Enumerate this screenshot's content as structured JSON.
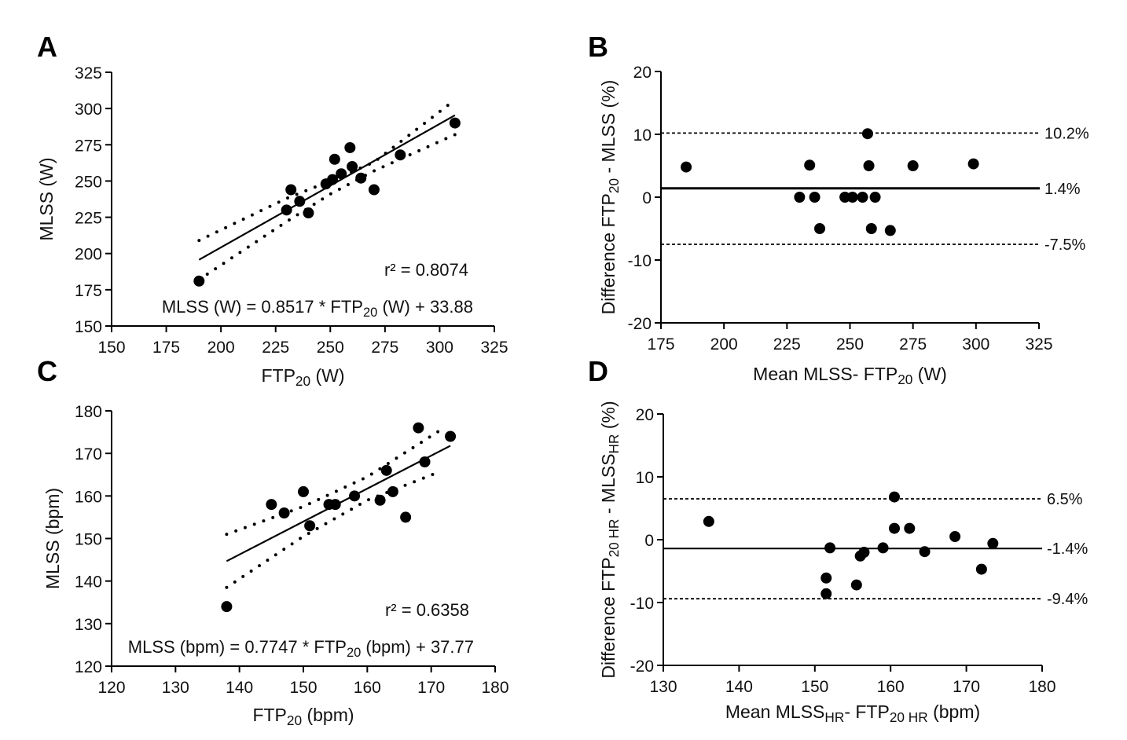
{
  "chart_data": [
    {
      "panel": "A",
      "type": "scatter",
      "xlabel": "FTP",
      "xlabel_sub": "20",
      "xlabel_unit": " (W)",
      "ylabel": "MLSS (W)",
      "xlim": [
        150,
        325
      ],
      "ylim": [
        150,
        325
      ],
      "xticks": [
        150,
        175,
        200,
        225,
        250,
        275,
        300,
        325
      ],
      "yticks": [
        150,
        175,
        200,
        225,
        250,
        275,
        300,
        325
      ],
      "points": [
        [
          190,
          181
        ],
        [
          230,
          230
        ],
        [
          232,
          244
        ],
        [
          236,
          236
        ],
        [
          240,
          228
        ],
        [
          248,
          248
        ],
        [
          251,
          251
        ],
        [
          252,
          265
        ],
        [
          255,
          255
        ],
        [
          259,
          273
        ],
        [
          260,
          260
        ],
        [
          264,
          252
        ],
        [
          270,
          244
        ],
        [
          282,
          268
        ],
        [
          307,
          290
        ]
      ],
      "regression": {
        "slope": 0.8517,
        "intercept": 33.88,
        "x_range": [
          190,
          307
        ]
      },
      "ci_upper": [
        [
          190,
          209
        ],
        [
          230,
          238
        ],
        [
          250,
          250
        ],
        [
          270,
          263
        ],
        [
          307,
          306
        ]
      ],
      "ci_lower": [
        [
          190,
          182
        ],
        [
          230,
          222
        ],
        [
          250,
          241
        ],
        [
          270,
          257
        ],
        [
          307,
          282
        ]
      ],
      "r2_text": "r² = 0.8074",
      "equation": {
        "pre": "MLSS (W) = 0.8517 * FTP",
        "sub": "20",
        "post": " (W) + 33.88"
      }
    },
    {
      "panel": "B",
      "type": "scatter",
      "xlabel": "Mean  MLSS- FTP",
      "xlabel_sub": "20",
      "xlabel_unit": " (W)",
      "ylabel_pre": "Difference FTP",
      "ylabel_sub": "20",
      "ylabel_post": " - MLSS (%)",
      "xlim": [
        175,
        325
      ],
      "ylim": [
        -20,
        20
      ],
      "xticks": [
        175,
        200,
        225,
        250,
        275,
        300,
        325
      ],
      "yticks": [
        -20,
        -10,
        0,
        10,
        20
      ],
      "points": [
        [
          185,
          4.8
        ],
        [
          230,
          0
        ],
        [
          234,
          5.1
        ],
        [
          236,
          0
        ],
        [
          238,
          -5
        ],
        [
          248,
          0
        ],
        [
          251,
          0
        ],
        [
          255,
          0
        ],
        [
          257,
          10.1
        ],
        [
          257.5,
          5
        ],
        [
          258.5,
          -5
        ],
        [
          260,
          0
        ],
        [
          266,
          -5.3
        ],
        [
          275,
          5
        ],
        [
          299,
          5.3
        ]
      ],
      "bias": {
        "value": 1.4,
        "label": "1.4%"
      },
      "upper_loa": {
        "value": 10.2,
        "label": "10.2%"
      },
      "lower_loa": {
        "value": -7.5,
        "label": "-7.5%"
      }
    },
    {
      "panel": "C",
      "type": "scatter",
      "xlabel": "FTP",
      "xlabel_sub": "20",
      "xlabel_unit": " (bpm)",
      "ylabel": "MLSS (bpm)",
      "xlim": [
        120,
        180
      ],
      "ylim": [
        120,
        180
      ],
      "xticks": [
        120,
        130,
        140,
        150,
        160,
        170,
        180
      ],
      "yticks": [
        120,
        130,
        140,
        150,
        160,
        170,
        180
      ],
      "points": [
        [
          138,
          134
        ],
        [
          145,
          158
        ],
        [
          147,
          156
        ],
        [
          150,
          161
        ],
        [
          151,
          153
        ],
        [
          154,
          158
        ],
        [
          155,
          158
        ],
        [
          158,
          160
        ],
        [
          162,
          159
        ],
        [
          163,
          166
        ],
        [
          164,
          161
        ],
        [
          166,
          155
        ],
        [
          168,
          176
        ],
        [
          169,
          168
        ],
        [
          173,
          174
        ]
      ],
      "regression": {
        "slope": 0.7747,
        "intercept": 37.77,
        "x_range": [
          138,
          173
        ]
      },
      "ci_upper": [
        [
          138,
          151
        ],
        [
          150,
          157.5
        ],
        [
          160,
          164.5
        ],
        [
          172,
          176
        ]
      ],
      "ci_lower": [
        [
          138,
          138.5
        ],
        [
          150,
          150.5
        ],
        [
          160,
          159
        ],
        [
          171,
          165.5
        ]
      ],
      "r2_text": "r² = 0.6358",
      "equation": {
        "pre": "MLSS (bpm) = 0.7747 * FTP",
        "sub": "20",
        "post": " (bpm) + 37.77"
      }
    },
    {
      "panel": "D",
      "type": "scatter",
      "xlabel_parts": [
        "Mean  MLSS",
        "HR",
        "- FTP",
        "20 HR",
        " (bpm)"
      ],
      "ylabel_parts": [
        "Difference FTP",
        "20 HR",
        " - MLSS",
        "HR",
        " (%)"
      ],
      "xlim": [
        130,
        180
      ],
      "ylim": [
        -20,
        20
      ],
      "xticks": [
        130,
        140,
        150,
        160,
        170,
        180
      ],
      "yticks": [
        -20,
        -10,
        0,
        10,
        20
      ],
      "points": [
        [
          136,
          2.9
        ],
        [
          151.5,
          -6.1
        ],
        [
          151.5,
          -8.6
        ],
        [
          152,
          -1.3
        ],
        [
          155.5,
          -7.2
        ],
        [
          156,
          -2.6
        ],
        [
          156.5,
          -2
        ],
        [
          159,
          -1.3
        ],
        [
          160.5,
          6.8
        ],
        [
          160.5,
          1.8
        ],
        [
          162.5,
          1.8
        ],
        [
          164.5,
          -1.9
        ],
        [
          168.5,
          0.5
        ],
        [
          172,
          -4.7
        ],
        [
          173.5,
          -0.6
        ]
      ],
      "bias": {
        "value": -1.4,
        "label": "-1.4%"
      },
      "upper_loa": {
        "value": 6.5,
        "label": "6.5%"
      },
      "lower_loa": {
        "value": -9.4,
        "label": "-9.4%"
      }
    }
  ]
}
